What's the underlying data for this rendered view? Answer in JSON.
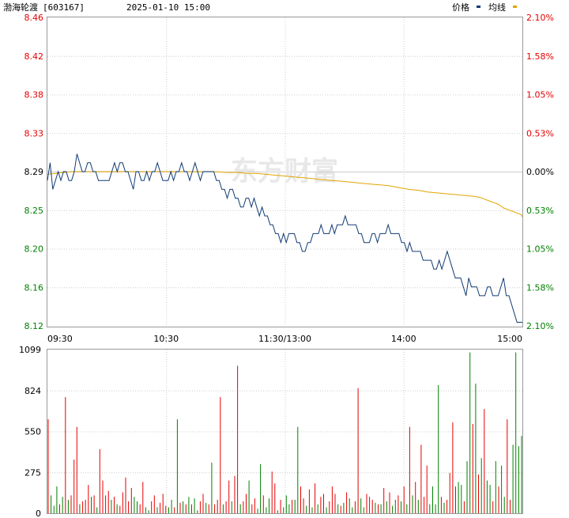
{
  "header": {
    "stock_name": "渤海轮渡",
    "stock_code": "[603167]",
    "timestamp": "2025-01-10 15:00",
    "legend": [
      {
        "label": "价格",
        "color": "#123b74"
      },
      {
        "label": "均线",
        "color": "#e3a400"
      }
    ]
  },
  "watermark": "东方财富",
  "colors": {
    "up": "#e60000",
    "down": "#008000",
    "neutral": "#000000",
    "price": "#123b74",
    "avg": "#e3a400",
    "grid": "#cccccc",
    "border": "#999999"
  },
  "chart_data": [
    {
      "type": "line",
      "title": "",
      "prev_close": 8.29,
      "y_ticks": [
        "8.46",
        "8.42",
        "8.38",
        "8.33",
        "8.29",
        "8.25",
        "8.20",
        "8.16",
        "8.12"
      ],
      "y_tick_colors": [
        "up",
        "up",
        "up",
        "up",
        "neutral",
        "down",
        "down",
        "down",
        "down"
      ],
      "pct_ticks": [
        "2.10%",
        "1.58%",
        "1.05%",
        "0.53%",
        "0.00%",
        "0.53%",
        "1.05%",
        "1.58%",
        "2.10%"
      ],
      "ylim": [
        8.116,
        8.464
      ],
      "x_ticks": [
        "09:30",
        "10:30",
        "11:30/13:00",
        "14:00",
        "15:00"
      ],
      "series": [
        {
          "name": "价格",
          "values": [
            8.28,
            8.3,
            8.27,
            8.28,
            8.29,
            8.28,
            8.29,
            8.29,
            8.28,
            8.28,
            8.29,
            8.31,
            8.3,
            8.29,
            8.29,
            8.3,
            8.3,
            8.29,
            8.29,
            8.28,
            8.28,
            8.28,
            8.28,
            8.28,
            8.29,
            8.3,
            8.29,
            8.3,
            8.3,
            8.29,
            8.29,
            8.28,
            8.27,
            8.29,
            8.29,
            8.28,
            8.28,
            8.29,
            8.28,
            8.29,
            8.29,
            8.3,
            8.29,
            8.28,
            8.28,
            8.28,
            8.29,
            8.28,
            8.29,
            8.29,
            8.3,
            8.29,
            8.29,
            8.28,
            8.29,
            8.3,
            8.29,
            8.28,
            8.29,
            8.29,
            8.29,
            8.29,
            8.29,
            8.28,
            8.28,
            8.27,
            8.27,
            8.26,
            8.27,
            8.27,
            8.26,
            8.26,
            8.25,
            8.25,
            8.26,
            8.26,
            8.25,
            8.26,
            8.25,
            8.24,
            8.25,
            8.24,
            8.24,
            8.23,
            8.23,
            8.22,
            8.22,
            8.21,
            8.22,
            8.21,
            8.22,
            8.22,
            8.22,
            8.21,
            8.21,
            8.2,
            8.2,
            8.21,
            8.21,
            8.22,
            8.22,
            8.22,
            8.23,
            8.22,
            8.22,
            8.22,
            8.23,
            8.22,
            8.23,
            8.23,
            8.23,
            8.24,
            8.23,
            8.23,
            8.23,
            8.23,
            8.22,
            8.22,
            8.21,
            8.21,
            8.21,
            8.22,
            8.22,
            8.21,
            8.22,
            8.22,
            8.22,
            8.23,
            8.22,
            8.22,
            8.22,
            8.22,
            8.21,
            8.21,
            8.2,
            8.21,
            8.2,
            8.2,
            8.2,
            8.2,
            8.19,
            8.19,
            8.19,
            8.19,
            8.18,
            8.18,
            8.19,
            8.18,
            8.19,
            8.2,
            8.19,
            8.18,
            8.17,
            8.17,
            8.17,
            8.16,
            8.15,
            8.17,
            8.16,
            8.16,
            8.16,
            8.15,
            8.15,
            8.15,
            8.16,
            8.16,
            8.15,
            8.15,
            8.15,
            8.16,
            8.17,
            8.15,
            8.15,
            8.14,
            8.13,
            8.12,
            8.12,
            8.12
          ]
        },
        {
          "name": "均线",
          "values": [
            8.287,
            8.29,
            8.29,
            8.29,
            8.29,
            8.29,
            8.29,
            8.29,
            8.289,
            8.289,
            8.288,
            8.288,
            8.287,
            8.286,
            8.285,
            8.284,
            8.283,
            8.282,
            8.281,
            8.28,
            8.279,
            8.278,
            8.277,
            8.276,
            8.275,
            8.274,
            8.272,
            8.27,
            8.269,
            8.267,
            8.266,
            8.265,
            8.264,
            8.263,
            8.262,
            8.261,
            8.259,
            8.257,
            8.255,
            8.253,
            8.249,
            8.247,
            8.245,
            8.243,
            8.242,
            8.241,
            8.239
          ]
        }
      ],
      "avg_x_fraction": [
        0.0,
        0.05,
        0.1,
        0.15,
        0.2,
        0.25,
        0.3,
        0.35,
        0.38,
        0.4,
        0.42,
        0.44,
        0.46,
        0.48,
        0.5,
        0.52,
        0.54,
        0.56,
        0.58,
        0.6,
        0.62,
        0.64,
        0.66,
        0.68,
        0.7,
        0.72,
        0.74,
        0.76,
        0.78,
        0.8,
        0.82,
        0.84,
        0.86,
        0.88,
        0.9,
        0.91,
        0.92,
        0.93,
        0.94,
        0.95,
        0.96,
        0.97,
        0.98,
        0.99,
        0.995,
        0.998,
        1.0
      ]
    },
    {
      "type": "bar",
      "title": "",
      "y_ticks": [
        "1099",
        "824",
        "550",
        "275",
        "0"
      ],
      "ylim": [
        0,
        1099
      ],
      "values": [
        630,
        120,
        50,
        180,
        60,
        110,
        780,
        90,
        120,
        360,
        580,
        60,
        80,
        90,
        190,
        110,
        120,
        40,
        430,
        220,
        120,
        150,
        90,
        110,
        60,
        50,
        140,
        240,
        80,
        170,
        110,
        80,
        60,
        210,
        40,
        20,
        80,
        120,
        40,
        70,
        130,
        50,
        40,
        90,
        40,
        630,
        70,
        80,
        60,
        110,
        60,
        100,
        20,
        80,
        130,
        70,
        60,
        340,
        60,
        90,
        780,
        60,
        80,
        220,
        80,
        250,
        990,
        60,
        80,
        130,
        220,
        60,
        100,
        30,
        330,
        120,
        40,
        100,
        280,
        200,
        20,
        90,
        40,
        120,
        60,
        90,
        90,
        580,
        180,
        100,
        50,
        160,
        40,
        200,
        60,
        110,
        130,
        40,
        80,
        180,
        130,
        60,
        50,
        70,
        140,
        100,
        40,
        80,
        840,
        100,
        40,
        130,
        110,
        90,
        70,
        60,
        60,
        170,
        80,
        140,
        50,
        90,
        120,
        80,
        180,
        60,
        580,
        120,
        210,
        90,
        460,
        110,
        320,
        60,
        180,
        60,
        860,
        110,
        70,
        90,
        270,
        610,
        180,
        210,
        190,
        80,
        350,
        1080,
        600,
        870,
        260,
        370,
        700,
        220,
        190,
        80,
        350,
        180,
        320,
        110,
        630,
        90,
        460,
        1080,
        450,
        520
      ],
      "colors": [
        "up",
        "down",
        "down",
        "down",
        "up",
        "down",
        "up",
        "down",
        "up",
        "up",
        "up",
        "down",
        "up",
        "up",
        "up",
        "down",
        "up",
        "down",
        "up",
        "up",
        "up",
        "up",
        "down",
        "up",
        "down",
        "up",
        "up",
        "up",
        "up",
        "up",
        "down",
        "down",
        "up",
        "up",
        "down",
        "down",
        "up",
        "up",
        "down",
        "up",
        "up",
        "up",
        "down",
        "down",
        "up",
        "down",
        "up",
        "down",
        "up",
        "down",
        "up",
        "down",
        "down",
        "up",
        "up",
        "down",
        "up",
        "down",
        "up",
        "up",
        "up",
        "down",
        "up",
        "up",
        "down",
        "up",
        "up",
        "down",
        "up",
        "up",
        "down",
        "up",
        "up",
        "down",
        "down",
        "up",
        "down",
        "down",
        "up",
        "up",
        "down",
        "up",
        "down",
        "down",
        "down",
        "up",
        "down",
        "down",
        "up",
        "up",
        "down",
        "up",
        "down",
        "up",
        "down",
        "up",
        "up",
        "down",
        "up",
        "up",
        "up",
        "down",
        "up",
        "down",
        "up",
        "down",
        "down",
        "up",
        "up",
        "down",
        "down",
        "up",
        "up",
        "up",
        "down",
        "up",
        "down",
        "up",
        "down",
        "up",
        "down",
        "down",
        "up",
        "down",
        "up",
        "down",
        "up",
        "down",
        "up",
        "down",
        "up",
        "up",
        "up",
        "down",
        "down",
        "down",
        "down",
        "up",
        "down",
        "up",
        "up",
        "up",
        "up",
        "down",
        "down",
        "up",
        "down",
        "down",
        "up",
        "down",
        "up",
        "down",
        "up",
        "down",
        "down",
        "up",
        "down",
        "up",
        "down",
        "down",
        "up",
        "up",
        "down",
        "down",
        "down",
        "down"
      ]
    }
  ]
}
